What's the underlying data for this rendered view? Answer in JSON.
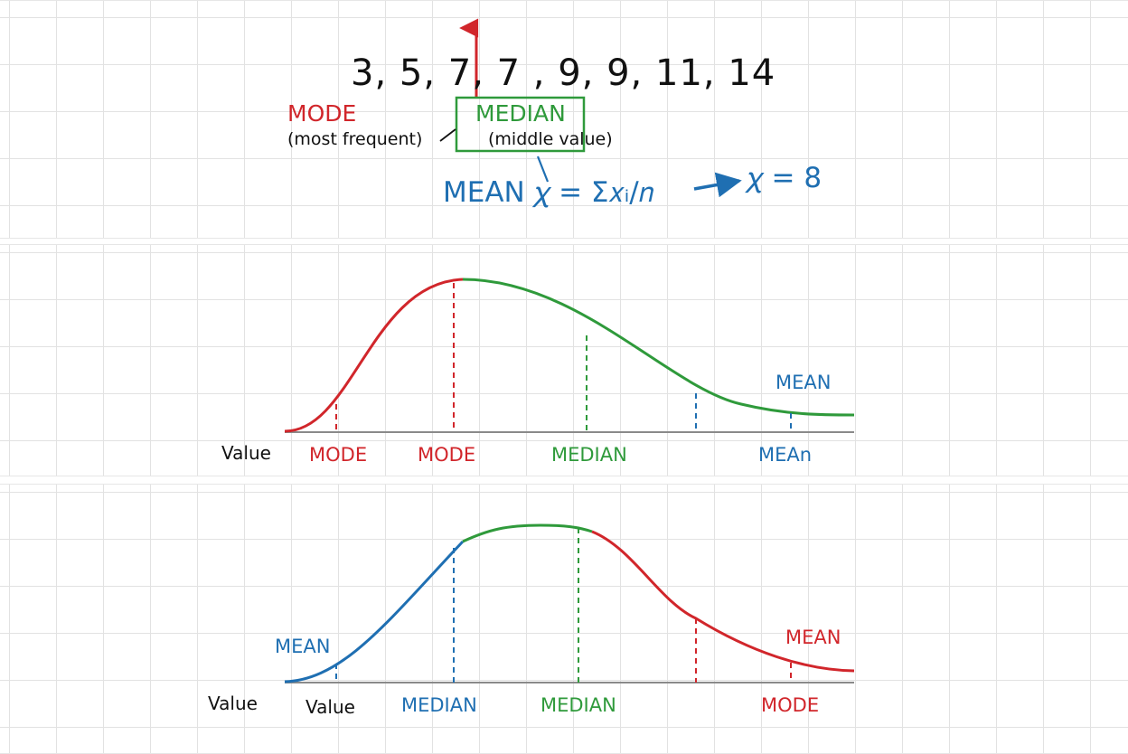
{
  "colors": {
    "mode": "#d1262b",
    "median": "#2f9a3b",
    "mean": "#1f6fb2",
    "text": "#111111",
    "axis": "#8a8a8a"
  },
  "top": {
    "sequence": "3, 5, 7, 7 , 9, 9, 11, 14",
    "mode_label": "MODE",
    "mode_note": "(most frequent)",
    "median_label": "MEDIAN",
    "median_note": "(middle value)",
    "mean_formula": "MEAN 𝜒 = Σ𝑥ᵢ/𝑛",
    "mean_result": "𝜒 = 8"
  },
  "middle": {
    "value_label": "Value",
    "labels": [
      "MODE",
      "MODE",
      "MEDIAN",
      "MEAn"
    ],
    "mean_top": "MEAN"
  },
  "bottom": {
    "value_label": "Value",
    "labels": [
      "Value",
      "MEDIAN",
      "MEDIAN",
      "MODE"
    ],
    "mean_left": "MEAN",
    "mean_right": "MEAN"
  }
}
